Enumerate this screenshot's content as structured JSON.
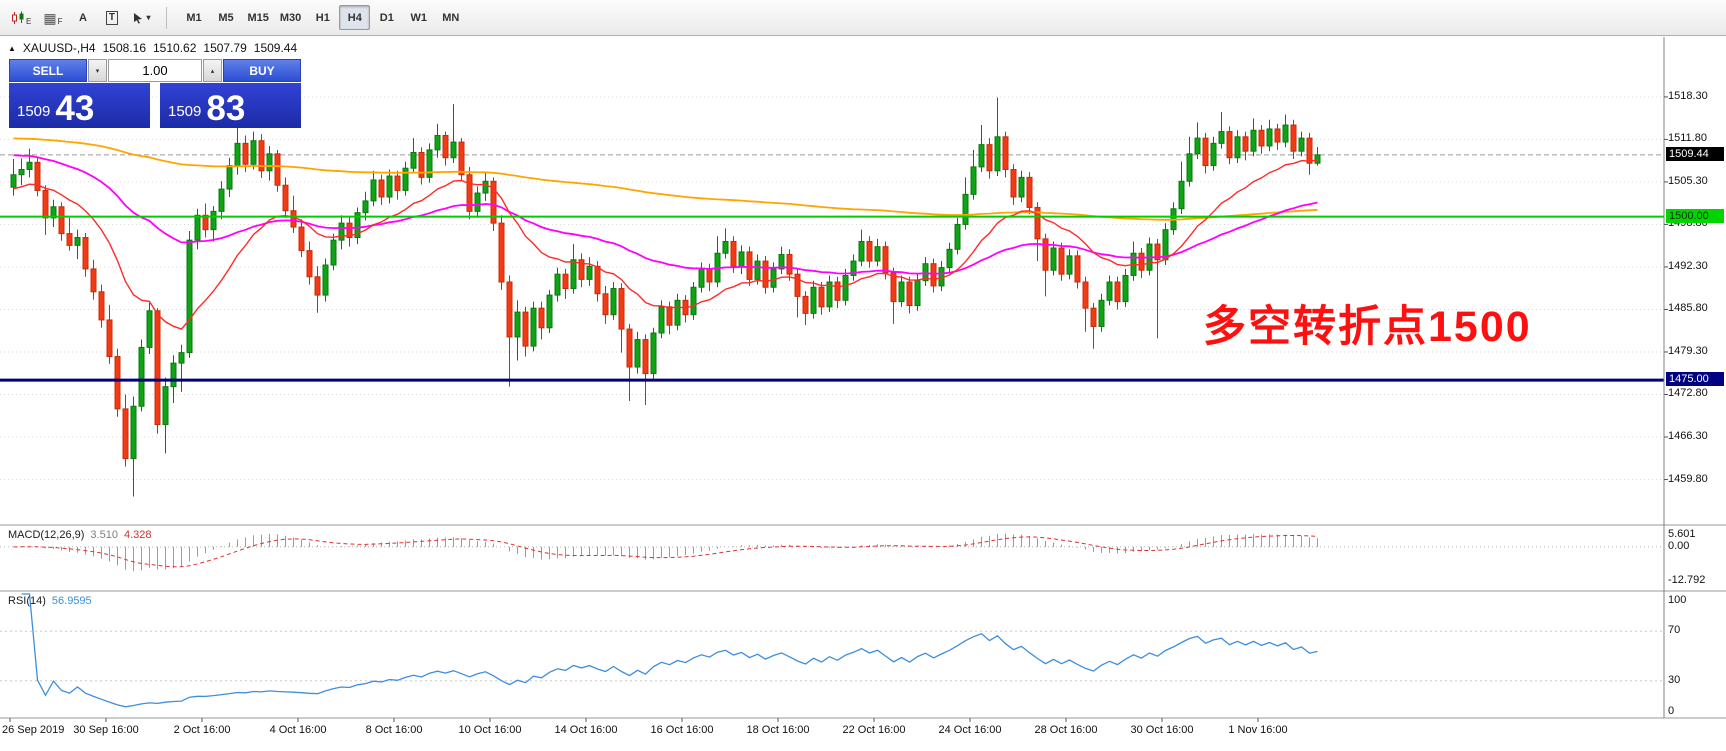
{
  "toolbar": {
    "icon_e_sub": "E",
    "icon_f_sub": "F",
    "letter_a": "A",
    "letter_t": "T",
    "timeframes": [
      "M1",
      "M5",
      "M15",
      "M30",
      "H1",
      "H4",
      "D1",
      "W1",
      "MN"
    ],
    "active_timeframe": "H4"
  },
  "quote_bar": {
    "collapse_icon": "▲",
    "symbol": "XAUUSD-,H4",
    "open": "1508.16",
    "high": "1510.62",
    "low": "1507.79",
    "close": "1509.44"
  },
  "trade_panel": {
    "sell_label": "SELL",
    "buy_label": "BUY",
    "volume": "1.00",
    "sell_price_main": "1509",
    "sell_price_pips": "43",
    "buy_price_main": "1509",
    "buy_price_pips": "83"
  },
  "indicators": {
    "macd_title": "MACD(12,26,9)",
    "macd_main": "3.510",
    "macd_signal": "4.328",
    "rsi_title": "RSI(14)",
    "rsi_value": "56.9595"
  },
  "chart_data": {
    "type": "candlestick",
    "symbol": "XAUUSD-",
    "timeframe": "H4",
    "price_axis": {
      "range": [
        1453,
        1527
      ],
      "gridline_labels": [
        "1518.30",
        "1511.80",
        "1505.30",
        "1498.80",
        "1492.30",
        "1485.80",
        "1479.30",
        "1472.80",
        "1466.30",
        "1459.80"
      ],
      "tags": [
        {
          "name": "bid-price-tag",
          "text": "1509.44",
          "price": 1509.44,
          "bg": "#000000",
          "fg": "#ffffff"
        },
        {
          "name": "level-1500-tag",
          "text": "1500.00",
          "price": 1500.0,
          "bg": "#00d500",
          "fg": "#003300"
        },
        {
          "name": "level-1475-tag",
          "text": "1475.00",
          "price": 1475.0,
          "bg": "#000082",
          "fg": "#ffffff"
        }
      ]
    },
    "bid_line": {
      "price": 1509.44
    },
    "levels": [
      {
        "price": 1500.0,
        "color": "#00cc00",
        "width": 2
      },
      {
        "price": 1475.0,
        "color": "#000082",
        "width": 3
      }
    ],
    "colors": {
      "up": "#0fa315",
      "up_border": "#0a7a10",
      "down": "#f23b14",
      "down_border": "#c52c0c"
    },
    "moving_averages": [
      {
        "name": "fast-ma",
        "period": 18,
        "seed": 1504,
        "color": "#ff2a2a",
        "width": 1.4
      },
      {
        "name": "medium-ma",
        "period": 55,
        "seed": 1509.5,
        "color": "#ff00ff",
        "width": 1.8
      },
      {
        "name": "slow-ma",
        "period": 250,
        "seed": 1512,
        "color": "#ffa500",
        "width": 1.8
      }
    ],
    "macd": {
      "fast": 12,
      "slow": 26,
      "signal_period": 9,
      "range": [
        -16,
        7
      ],
      "axis": [
        {
          "text": "5.601",
          "value": 5.601
        },
        {
          "text": "0.00",
          "value": 0
        },
        {
          "text": "-12.792",
          "value": -12.792
        }
      ]
    },
    "rsi": {
      "period": 14,
      "color": "#3e8ede",
      "levels": [
        70,
        30
      ],
      "axis": [
        {
          "text": "100",
          "value": 100
        },
        {
          "text": "70",
          "value": 70
        },
        {
          "text": "30",
          "value": 30
        },
        {
          "text": "0",
          "value": 0
        }
      ]
    },
    "annotation": {
      "text": "多空转折点1500",
      "color": "#fe1010"
    },
    "x_labels": [
      [
        "26 Sep 2019",
        0
      ],
      [
        "30 Sep 16:00",
        12
      ],
      [
        "2 Oct 16:00",
        24
      ],
      [
        "4 Oct 16:00",
        36
      ],
      [
        "8 Oct 16:00",
        48
      ],
      [
        "10 Oct 16:00",
        60
      ],
      [
        "14 Oct 16:00",
        72
      ],
      [
        "16 Oct 16:00",
        84
      ],
      [
        "18 Oct 16:00",
        96
      ],
      [
        "22 Oct 16:00",
        108
      ],
      [
        "24 Oct 16:00",
        120
      ],
      [
        "28 Oct 16:00",
        132
      ],
      [
        "30 Oct 16:00",
        144
      ],
      [
        "1 Nov 16:00",
        156
      ]
    ],
    "candles": [
      [
        1504.5,
        1508.8,
        1503.2,
        1506.4
      ],
      [
        1506.4,
        1508.9,
        1504.8,
        1507.2
      ],
      [
        1507.2,
        1510.4,
        1506.0,
        1508.3
      ],
      [
        1508.3,
        1509.0,
        1503.1,
        1504.0
      ],
      [
        1504.0,
        1504.8,
        1497.2,
        1499.8
      ],
      [
        1499.8,
        1502.6,
        1498.4,
        1501.5
      ],
      [
        1501.5,
        1502.2,
        1496.3,
        1497.4
      ],
      [
        1497.4,
        1499.8,
        1494.8,
        1495.6
      ],
      [
        1495.6,
        1498.0,
        1493.5,
        1496.8
      ],
      [
        1496.8,
        1497.5,
        1490.8,
        1492.0
      ],
      [
        1492.0,
        1493.4,
        1487.3,
        1488.5
      ],
      [
        1488.5,
        1489.6,
        1483.0,
        1484.2
      ],
      [
        1484.2,
        1486.5,
        1477.5,
        1478.6
      ],
      [
        1478.6,
        1479.8,
        1469.4,
        1470.6
      ],
      [
        1470.6,
        1472.8,
        1461.8,
        1463.0
      ],
      [
        1463.0,
        1472.5,
        1457.2,
        1471.0
      ],
      [
        1471.0,
        1481.2,
        1470.2,
        1480.0
      ],
      [
        1480.0,
        1486.8,
        1479.0,
        1485.6
      ],
      [
        1485.6,
        1486.0,
        1466.8,
        1468.2
      ],
      [
        1468.2,
        1475.4,
        1463.8,
        1474.0
      ],
      [
        1474.0,
        1478.8,
        1471.5,
        1477.6
      ],
      [
        1477.6,
        1480.4,
        1473.2,
        1479.2
      ],
      [
        1479.2,
        1497.8,
        1478.4,
        1496.4
      ],
      [
        1496.4,
        1501.2,
        1495.0,
        1500.2
      ],
      [
        1500.2,
        1502.0,
        1496.8,
        1498.0
      ],
      [
        1498.0,
        1501.6,
        1496.2,
        1500.8
      ],
      [
        1500.8,
        1505.4,
        1499.6,
        1504.2
      ],
      [
        1504.2,
        1509.0,
        1503.0,
        1507.8
      ],
      [
        1507.8,
        1513.6,
        1506.4,
        1511.2
      ],
      [
        1511.2,
        1512.4,
        1506.8,
        1508.0
      ],
      [
        1508.0,
        1513.0,
        1507.2,
        1511.6
      ],
      [
        1511.6,
        1512.6,
        1505.9,
        1507.0
      ],
      [
        1507.0,
        1510.8,
        1505.5,
        1509.6
      ],
      [
        1509.6,
        1510.2,
        1503.8,
        1504.8
      ],
      [
        1504.8,
        1506.0,
        1499.8,
        1500.9
      ],
      [
        1500.9,
        1503.2,
        1497.5,
        1498.4
      ],
      [
        1498.4,
        1499.6,
        1493.8,
        1494.8
      ],
      [
        1494.8,
        1496.2,
        1489.6,
        1490.8
      ],
      [
        1490.8,
        1492.4,
        1485.3,
        1488.0
      ],
      [
        1488.0,
        1493.6,
        1487.0,
        1492.6
      ],
      [
        1492.6,
        1497.4,
        1491.8,
        1496.4
      ],
      [
        1496.4,
        1500.2,
        1495.0,
        1499.0
      ],
      [
        1499.0,
        1500.0,
        1495.4,
        1496.8
      ],
      [
        1496.8,
        1501.4,
        1495.8,
        1500.6
      ],
      [
        1500.6,
        1503.8,
        1499.4,
        1502.4
      ],
      [
        1502.4,
        1507.0,
        1501.6,
        1505.6
      ],
      [
        1505.6,
        1506.4,
        1501.8,
        1503.0
      ],
      [
        1503.0,
        1507.2,
        1502.0,
        1506.2
      ],
      [
        1506.2,
        1507.0,
        1502.6,
        1504.0
      ],
      [
        1504.0,
        1508.4,
        1503.2,
        1507.4
      ],
      [
        1507.4,
        1512.0,
        1506.6,
        1509.8
      ],
      [
        1509.8,
        1510.6,
        1504.9,
        1506.0
      ],
      [
        1506.0,
        1511.2,
        1505.2,
        1510.2
      ],
      [
        1510.2,
        1514.2,
        1509.0,
        1512.4
      ],
      [
        1512.4,
        1513.0,
        1507.8,
        1509.0
      ],
      [
        1509.0,
        1517.2,
        1508.2,
        1511.4
      ],
      [
        1511.4,
        1512.0,
        1505.4,
        1506.4
      ],
      [
        1506.4,
        1507.6,
        1499.6,
        1500.8
      ],
      [
        1500.8,
        1504.6,
        1499.8,
        1503.6
      ],
      [
        1503.6,
        1506.8,
        1502.4,
        1505.4
      ],
      [
        1505.4,
        1506.0,
        1497.8,
        1499.0
      ],
      [
        1499.0,
        1500.2,
        1488.8,
        1490.0
      ],
      [
        1490.0,
        1491.0,
        1474.0,
        1481.6
      ],
      [
        1481.6,
        1487.2,
        1478.0,
        1485.4
      ],
      [
        1485.4,
        1486.2,
        1478.6,
        1480.2
      ],
      [
        1480.2,
        1487.0,
        1479.4,
        1486.0
      ],
      [
        1486.0,
        1487.0,
        1481.2,
        1483.0
      ],
      [
        1483.0,
        1488.8,
        1482.2,
        1488.0
      ],
      [
        1488.0,
        1492.2,
        1487.0,
        1491.2
      ],
      [
        1491.2,
        1492.0,
        1487.4,
        1489.0
      ],
      [
        1489.0,
        1495.8,
        1488.2,
        1493.4
      ],
      [
        1493.4,
        1494.4,
        1489.2,
        1490.4
      ],
      [
        1490.4,
        1493.8,
        1489.4,
        1492.4
      ],
      [
        1492.4,
        1493.2,
        1487.0,
        1488.2
      ],
      [
        1488.2,
        1489.4,
        1483.6,
        1485.0
      ],
      [
        1485.0,
        1490.0,
        1484.2,
        1489.0
      ],
      [
        1489.0,
        1489.8,
        1479.2,
        1482.8
      ],
      [
        1482.8,
        1483.6,
        1471.8,
        1477.0
      ],
      [
        1477.0,
        1482.4,
        1476.0,
        1481.2
      ],
      [
        1481.2,
        1482.0,
        1471.2,
        1476.0
      ],
      [
        1476.0,
        1483.0,
        1475.2,
        1482.2
      ],
      [
        1482.2,
        1487.2,
        1481.4,
        1486.2
      ],
      [
        1486.2,
        1487.0,
        1482.0,
        1483.4
      ],
      [
        1483.4,
        1488.2,
        1482.6,
        1487.2
      ],
      [
        1487.2,
        1488.0,
        1483.8,
        1485.0
      ],
      [
        1485.0,
        1490.0,
        1484.2,
        1489.2
      ],
      [
        1489.2,
        1493.0,
        1488.4,
        1492.0
      ],
      [
        1492.0,
        1492.8,
        1488.6,
        1490.0
      ],
      [
        1490.0,
        1497.0,
        1489.2,
        1494.4
      ],
      [
        1494.4,
        1498.2,
        1493.6,
        1496.2
      ],
      [
        1496.2,
        1497.0,
        1491.4,
        1492.4
      ],
      [
        1492.4,
        1495.6,
        1491.2,
        1494.6
      ],
      [
        1494.6,
        1495.4,
        1489.4,
        1490.4
      ],
      [
        1490.4,
        1494.2,
        1489.6,
        1493.2
      ],
      [
        1493.2,
        1494.0,
        1488.2,
        1489.2
      ],
      [
        1489.2,
        1493.0,
        1488.4,
        1492.0
      ],
      [
        1492.0,
        1495.4,
        1491.2,
        1494.2
      ],
      [
        1494.2,
        1495.0,
        1490.2,
        1491.2
      ],
      [
        1491.2,
        1492.0,
        1484.6,
        1487.8
      ],
      [
        1487.8,
        1488.6,
        1483.4,
        1485.2
      ],
      [
        1485.2,
        1490.2,
        1484.4,
        1489.2
      ],
      [
        1489.2,
        1490.0,
        1485.0,
        1486.2
      ],
      [
        1486.2,
        1491.0,
        1485.4,
        1490.0
      ],
      [
        1490.0,
        1490.8,
        1486.0,
        1487.2
      ],
      [
        1487.2,
        1492.0,
        1486.4,
        1491.0
      ],
      [
        1491.0,
        1494.2,
        1490.2,
        1493.2
      ],
      [
        1493.2,
        1498.0,
        1492.4,
        1496.2
      ],
      [
        1496.2,
        1497.0,
        1492.2,
        1493.2
      ],
      [
        1493.2,
        1496.6,
        1492.4,
        1495.4
      ],
      [
        1495.4,
        1496.2,
        1490.4,
        1491.4
      ],
      [
        1491.4,
        1492.2,
        1483.6,
        1487.0
      ],
      [
        1487.0,
        1491.0,
        1486.2,
        1490.0
      ],
      [
        1490.0,
        1490.8,
        1485.2,
        1486.4
      ],
      [
        1486.4,
        1491.2,
        1485.6,
        1490.2
      ],
      [
        1490.2,
        1493.8,
        1489.4,
        1492.8
      ],
      [
        1492.8,
        1493.6,
        1488.4,
        1489.4
      ],
      [
        1489.4,
        1493.2,
        1488.6,
        1492.2
      ],
      [
        1492.2,
        1496.0,
        1491.4,
        1495.0
      ],
      [
        1495.0,
        1499.8,
        1494.2,
        1498.8
      ],
      [
        1498.8,
        1506.0,
        1498.0,
        1503.4
      ],
      [
        1503.4,
        1510.2,
        1502.6,
        1507.6
      ],
      [
        1507.6,
        1514.0,
        1506.8,
        1511.0
      ],
      [
        1511.0,
        1512.0,
        1505.8,
        1507.0
      ],
      [
        1507.0,
        1518.2,
        1506.2,
        1512.2
      ],
      [
        1512.2,
        1513.0,
        1506.0,
        1507.2
      ],
      [
        1507.2,
        1508.0,
        1501.8,
        1503.0
      ],
      [
        1503.0,
        1507.0,
        1502.2,
        1506.0
      ],
      [
        1506.0,
        1506.8,
        1500.4,
        1501.4
      ],
      [
        1501.4,
        1502.2,
        1493.2,
        1496.6
      ],
      [
        1496.6,
        1497.4,
        1487.8,
        1491.8
      ],
      [
        1491.8,
        1496.2,
        1491.0,
        1495.2
      ],
      [
        1495.2,
        1496.0,
        1490.2,
        1491.2
      ],
      [
        1491.2,
        1495.0,
        1490.4,
        1494.0
      ],
      [
        1494.0,
        1494.8,
        1489.0,
        1490.0
      ],
      [
        1490.0,
        1490.8,
        1482.4,
        1486.0
      ],
      [
        1486.0,
        1486.8,
        1479.8,
        1483.2
      ],
      [
        1483.2,
        1488.2,
        1482.4,
        1487.2
      ],
      [
        1487.2,
        1491.0,
        1486.4,
        1490.0
      ],
      [
        1490.0,
        1490.8,
        1485.8,
        1487.0
      ],
      [
        1487.0,
        1492.0,
        1486.2,
        1491.0
      ],
      [
        1491.0,
        1496.2,
        1490.2,
        1494.4
      ],
      [
        1494.4,
        1495.2,
        1490.6,
        1491.8
      ],
      [
        1491.8,
        1496.8,
        1491.0,
        1495.8
      ],
      [
        1495.8,
        1496.6,
        1481.4,
        1493.4
      ],
      [
        1493.4,
        1499.0,
        1492.6,
        1498.0
      ],
      [
        1498.0,
        1502.2,
        1497.2,
        1501.2
      ],
      [
        1501.2,
        1508.4,
        1500.4,
        1505.4
      ],
      [
        1505.4,
        1512.2,
        1504.6,
        1509.6
      ],
      [
        1509.6,
        1514.4,
        1508.8,
        1512.0
      ],
      [
        1512.0,
        1512.8,
        1506.6,
        1507.8
      ],
      [
        1507.8,
        1512.2,
        1507.0,
        1511.2
      ],
      [
        1511.2,
        1516.0,
        1510.4,
        1513.0
      ],
      [
        1513.0,
        1513.8,
        1508.0,
        1509.0
      ],
      [
        1509.0,
        1513.2,
        1508.2,
        1512.2
      ],
      [
        1512.2,
        1513.0,
        1508.6,
        1510.0
      ],
      [
        1510.0,
        1515.0,
        1509.2,
        1513.2
      ],
      [
        1513.2,
        1514.0,
        1509.6,
        1510.8
      ],
      [
        1510.8,
        1514.8,
        1510.0,
        1513.4
      ],
      [
        1513.4,
        1514.2,
        1510.2,
        1511.4
      ],
      [
        1511.4,
        1515.6,
        1510.6,
        1514.0
      ],
      [
        1514.0,
        1514.8,
        1508.8,
        1510.0
      ],
      [
        1510.0,
        1513.0,
        1509.2,
        1512.0
      ],
      [
        1512.0,
        1512.8,
        1506.4,
        1508.16
      ],
      [
        1508.16,
        1510.62,
        1507.79,
        1509.44
      ]
    ]
  }
}
